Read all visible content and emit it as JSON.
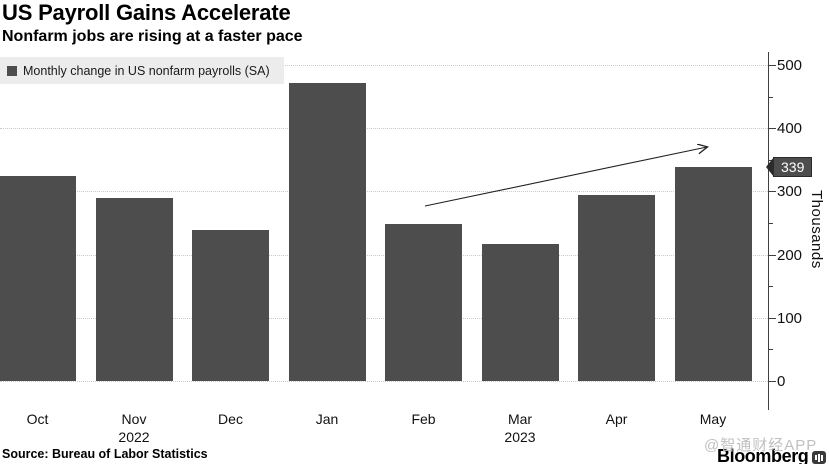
{
  "header": {
    "title": "US Payroll Gains Accelerate",
    "subtitle": "Nonfarm jobs are rising at a faster pace"
  },
  "legend": {
    "label": "Monthly change in US nonfarm payrolls (SA)",
    "swatch_color": "#4d4d4d"
  },
  "chart_data": {
    "type": "bar",
    "title": "US Payroll Gains Accelerate",
    "subtitle": "Nonfarm jobs are rising at a faster pace",
    "categories": [
      "Oct",
      "Nov",
      "Dec",
      "Jan",
      "Feb",
      "Mar",
      "Apr",
      "May"
    ],
    "values": [
      324,
      290,
      239,
      472,
      248,
      217,
      294,
      339
    ],
    "year_rows": [
      {
        "col": 1,
        "label": "2022"
      },
      {
        "col": 5,
        "label": "2023"
      }
    ],
    "xlabel": "",
    "ylabel": "Thousands",
    "ylim": [
      0,
      500
    ],
    "yticks": [
      0,
      100,
      200,
      300,
      400,
      500
    ],
    "minor_tick_step": 50,
    "y_axis_side": "right",
    "grid": "horizontal-dotted",
    "legend_entries": [
      "Monthly change in US nonfarm payrolls (SA)"
    ],
    "legend_position": "top-left",
    "bar_color": "#4d4d4d",
    "annotations": [
      {
        "type": "arrow",
        "note": "upward trend arrow from Feb toward May"
      },
      {
        "type": "value-tag",
        "label": "339",
        "value": 339
      }
    ]
  },
  "y_axis": {
    "unit_label": "Thousands"
  },
  "callout": {
    "label": "339",
    "value": 339,
    "bg": "#4d4d4d",
    "text_color": "#ffffff"
  },
  "footer": {
    "source": "Source: Bureau of Labor Statistics",
    "brand": "Bloomberg",
    "brand_icon": "soundwave-app-icon",
    "watermark": "@智通财经APP"
  }
}
